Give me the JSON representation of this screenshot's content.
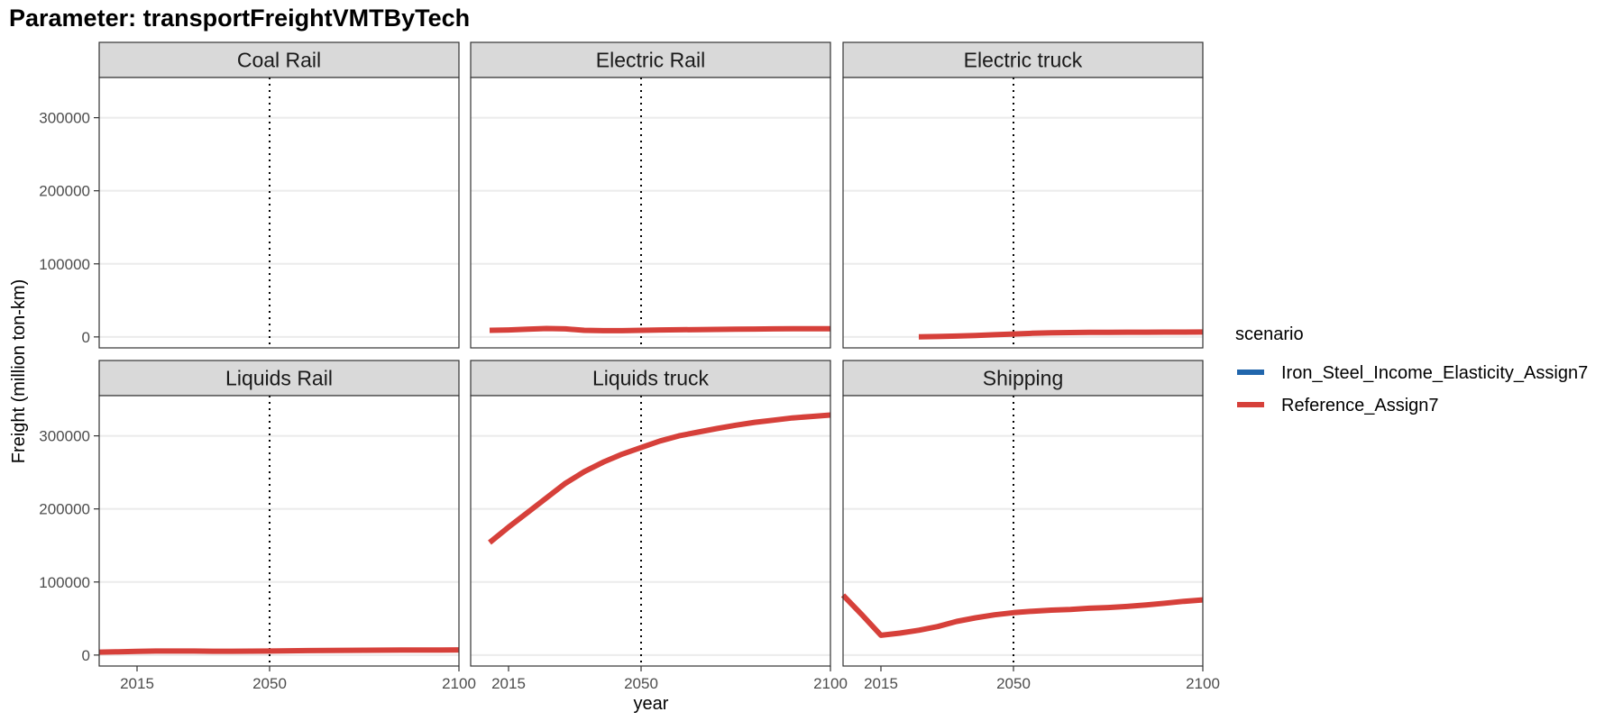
{
  "title": "Parameter: transportFreightVMTByTech",
  "chart_data": {
    "type": "line",
    "xlabel": "year",
    "ylabel": "Freight (million ton-km)",
    "xlim": [
      2005,
      2100
    ],
    "ylim": [
      -15000,
      355000
    ],
    "x_ticks": [
      2015,
      2050,
      2100
    ],
    "y_ticks": [
      0,
      100000,
      200000,
      300000
    ],
    "vline_x": 2050,
    "grid": true,
    "legend": {
      "title": "scenario",
      "position": "right",
      "entries": [
        {
          "name": "Iron_Steel_Income_Elasticity_Assign7",
          "color": "#2166ac"
        },
        {
          "name": "Reference_Assign7",
          "color": "#d6403a"
        }
      ]
    },
    "panels": [
      {
        "title": "Coal Rail",
        "series": []
      },
      {
        "title": "Electric Rail",
        "series": [
          {
            "name": "Reference_Assign7",
            "color": "#d6403a",
            "x": [
              2010,
              2015,
              2020,
              2025,
              2030,
              2035,
              2040,
              2045,
              2050,
              2055,
              2060,
              2065,
              2070,
              2075,
              2080,
              2085,
              2090,
              2095,
              2100
            ],
            "y": [
              9000,
              9500,
              10500,
              11500,
              11000,
              9000,
              8500,
              8500,
              9000,
              9500,
              9800,
              10000,
              10300,
              10600,
              10800,
              11000,
              11100,
              11200,
              11300
            ]
          }
        ]
      },
      {
        "title": "Electric truck",
        "series": [
          {
            "name": "Reference_Assign7",
            "color": "#d6403a",
            "x": [
              2025,
              2030,
              2035,
              2040,
              2045,
              2050,
              2055,
              2060,
              2065,
              2070,
              2075,
              2080,
              2085,
              2090,
              2095,
              2100
            ],
            "y": [
              200,
              500,
              1200,
              2000,
              3000,
              4000,
              5000,
              5600,
              6000,
              6200,
              6300,
              6400,
              6500,
              6600,
              6600,
              6700
            ]
          }
        ]
      },
      {
        "title": "Liquids Rail",
        "series": [
          {
            "name": "Reference_Assign7",
            "color": "#d6403a",
            "x": [
              2005,
              2010,
              2015,
              2020,
              2025,
              2030,
              2035,
              2040,
              2045,
              2050,
              2055,
              2060,
              2065,
              2070,
              2075,
              2080,
              2085,
              2090,
              2095,
              2100
            ],
            "y": [
              4000,
              4500,
              5000,
              5500,
              5500,
              5500,
              5200,
              5200,
              5300,
              5500,
              5800,
              6100,
              6300,
              6500,
              6600,
              6700,
              6800,
              6900,
              7000,
              7100
            ]
          }
        ]
      },
      {
        "title": "Liquids truck",
        "series": [
          {
            "name": "Reference_Assign7",
            "color": "#d6403a",
            "x": [
              2010,
              2015,
              2020,
              2025,
              2030,
              2035,
              2040,
              2045,
              2050,
              2055,
              2060,
              2065,
              2070,
              2075,
              2080,
              2085,
              2090,
              2095,
              2100
            ],
            "y": [
              154000,
              175000,
              195000,
              215000,
              235000,
              251000,
              264000,
              275000,
              284000,
              293000,
              300000,
              305000,
              310000,
              314500,
              318500,
              321500,
              324500,
              326500,
              328500
            ]
          }
        ]
      },
      {
        "title": "Shipping",
        "series": [
          {
            "name": "Reference_Assign7",
            "color": "#d6403a",
            "x": [
              2005,
              2010,
              2015,
              2020,
              2025,
              2030,
              2035,
              2040,
              2045,
              2050,
              2055,
              2060,
              2065,
              2070,
              2075,
              2080,
              2085,
              2090,
              2095,
              2100
            ],
            "y": [
              82000,
              55000,
              27000,
              30000,
              34000,
              39000,
              46000,
              51000,
              55000,
              58000,
              60000,
              61500,
              62500,
              64000,
              65000,
              66500,
              68500,
              71000,
              73500,
              75500
            ]
          }
        ]
      }
    ]
  }
}
